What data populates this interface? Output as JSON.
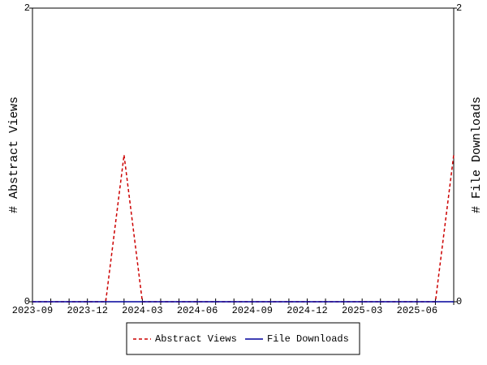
{
  "chart_data": {
    "type": "line",
    "x": [
      "2023-09",
      "2023-10",
      "2023-11",
      "2023-12",
      "2024-01",
      "2024-02",
      "2024-03",
      "2024-04",
      "2024-05",
      "2024-06",
      "2024-07",
      "2024-08",
      "2024-09",
      "2024-10",
      "2024-11",
      "2024-12",
      "2025-01",
      "2025-02",
      "2025-03",
      "2025-04",
      "2025-05",
      "2025-06",
      "2025-07",
      "2025-08"
    ],
    "xticks": [
      "2023-09",
      "2023-12",
      "2024-03",
      "2024-06",
      "2024-09",
      "2024-12",
      "2025-03",
      "2025-06"
    ],
    "ylabel": "# Abstract Views",
    "y2label": "# File Downloads",
    "ylim": [
      0,
      2
    ],
    "yticks": [
      0,
      2
    ],
    "y2lim": [
      0,
      2
    ],
    "y2ticks": [
      0,
      2
    ],
    "legend": "bottom",
    "series": [
      {
        "name": "Abstract Views",
        "color": "#cc0000",
        "dash": true,
        "values": [
          0,
          0,
          0,
          0,
          0,
          1,
          0,
          0,
          0,
          0,
          0,
          0,
          0,
          0,
          0,
          0,
          0,
          0,
          0,
          0,
          0,
          0,
          0,
          1
        ]
      },
      {
        "name": "File Downloads",
        "color": "#00009c",
        "dash": false,
        "axis": "y2",
        "values": [
          0,
          0,
          0,
          0,
          0,
          0,
          0,
          0,
          0,
          0,
          0,
          0,
          0,
          0,
          0,
          0,
          0,
          0,
          0,
          0,
          0,
          0,
          0,
          0
        ]
      }
    ]
  }
}
